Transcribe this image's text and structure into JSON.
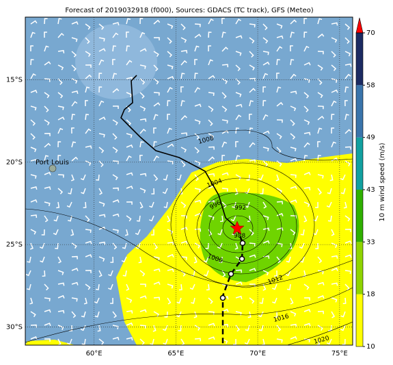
{
  "title": "Forecast of 2019032918 (f000), Sources: GDACS (TC track), GFS (Meteo)",
  "map": {
    "xlim": [
      55.8,
      75.8
    ],
    "ylim": [
      -31.1,
      -11.2
    ],
    "lon_ticks": [
      {
        "value": 60,
        "label": "60°E"
      },
      {
        "value": 65,
        "label": "65°E"
      },
      {
        "value": 70,
        "label": "70°E"
      },
      {
        "value": 75,
        "label": "75°E"
      }
    ],
    "lat_ticks": [
      {
        "value": -15,
        "label": "15°S"
      },
      {
        "value": -20,
        "label": "20°S"
      },
      {
        "value": -25,
        "label": "25°S"
      },
      {
        "value": -30,
        "label": "30°S"
      }
    ],
    "place": "Port Louis",
    "contour_labels": [
      "1008",
      "1004",
      "996",
      "992",
      "988",
      "1000",
      "1012",
      "1016",
      "1020"
    ]
  },
  "colorbar": {
    "label": "10 m wind speed (m/s)",
    "ticks": [
      10,
      18,
      33,
      43,
      49,
      58,
      70
    ],
    "colors": [
      "#ffff00",
      "#8fd400",
      "#2fb000",
      "#12a0a0",
      "#3a74ab",
      "#1c2b62"
    ],
    "extend_color": "#ff0000"
  }
}
